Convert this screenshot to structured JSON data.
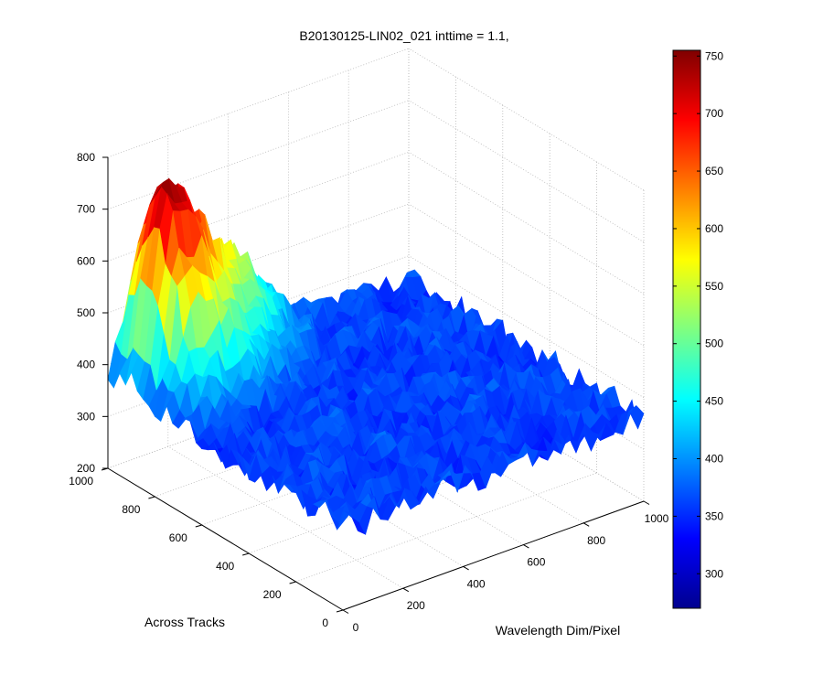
{
  "chart_data": {
    "type": "surface",
    "title": "B20130125-LIN02_021 inttime = 1.1,",
    "xlabel": "Wavelength Dim/Pixel",
    "ylabel": "Across Tracks",
    "zlabel": "",
    "xlim": [
      0,
      1000
    ],
    "ylim": [
      0,
      1000
    ],
    "zlim": [
      200,
      800
    ],
    "x_ticks": [
      "0",
      "200",
      "400",
      "600",
      "800",
      "1000"
    ],
    "y_ticks": [
      "0",
      "200",
      "400",
      "600",
      "800",
      "1000"
    ],
    "z_ticks": [
      "200",
      "300",
      "400",
      "500",
      "600",
      "700",
      "800"
    ],
    "grid": true,
    "colormap": "jet",
    "colorbar": {
      "range": [
        270,
        755
      ],
      "ticks": [
        "300",
        "350",
        "400",
        "450",
        "500",
        "550",
        "600",
        "650",
        "700",
        "750"
      ]
    },
    "surface": {
      "background_level": 360,
      "noise_amplitude": 30,
      "peak": {
        "x": 100,
        "y": 900,
        "value": 745
      },
      "secondary_peak": {
        "x": 400,
        "y": 980,
        "value": 480
      }
    }
  }
}
